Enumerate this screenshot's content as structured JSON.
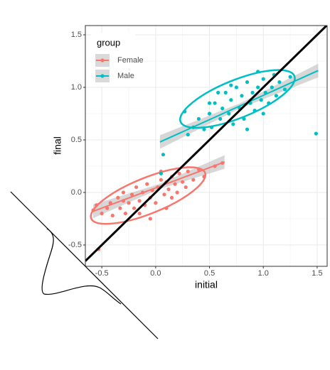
{
  "chart_data": {
    "type": "scatter",
    "xlabel": "initial",
    "ylabel": "final",
    "xlim": [
      -0.653,
      1.593
    ],
    "ylim": [
      -0.703,
      1.588
    ],
    "xticks": [
      -0.5,
      {
        "value": 0,
        "label": "0.0"
      },
      0.5,
      {
        "value": 1,
        "label": "1.0"
      },
      1.5
    ],
    "yticks": [
      -0.5,
      {
        "value": 0,
        "label": "0.0"
      },
      0.5,
      {
        "value": 1,
        "label": "1.0"
      },
      1.5
    ],
    "grid": true,
    "identity_line": true,
    "legend": {
      "title": "group",
      "position": "top-left"
    },
    "series": [
      {
        "name": "Female",
        "color": "#F8766D",
        "x": [
          -0.58,
          -0.55,
          -0.5,
          -0.45,
          -0.42,
          -0.4,
          -0.35,
          -0.33,
          -0.3,
          -0.28,
          -0.25,
          -0.22,
          -0.2,
          -0.18,
          -0.15,
          -0.12,
          -0.1,
          -0.08,
          -0.05,
          -0.03,
          0.0,
          0.02,
          0.05,
          0.08,
          0.1,
          0.12,
          0.15,
          0.18,
          0.2,
          0.22,
          0.25,
          0.28,
          0.3,
          0.35,
          0.4,
          0.45,
          0.55,
          0.62,
          -0.53,
          -0.05,
          0.1,
          -0.3,
          0.05,
          -0.15,
          0.15
        ],
        "values": [
          -0.17,
          -0.12,
          -0.2,
          -0.15,
          -0.1,
          -0.22,
          -0.05,
          -0.15,
          -0.08,
          -0.2,
          -0.1,
          -0.02,
          -0.15,
          0.05,
          -0.08,
          0.0,
          -0.12,
          0.08,
          -0.05,
          0.02,
          -0.1,
          0.05,
          0.12,
          -0.02,
          0.1,
          0.03,
          0.15,
          0.08,
          0.0,
          0.18,
          0.1,
          0.05,
          0.2,
          0.12,
          0.22,
          0.15,
          0.25,
          0.28,
          -0.54,
          -0.25,
          -0.15,
          0.0,
          0.2,
          -0.2,
          -0.05
        ],
        "trend": {
          "x": [
            -0.58,
            0.64
          ],
          "values": [
            -0.18,
            0.29
          ]
        },
        "ellipse": {
          "center": [
            -0.07,
            -0.03
          ],
          "radii": [
            0.57,
            0.17
          ],
          "angle": 22
        }
      },
      {
        "name": "Male",
        "color": "#00BFC4",
        "x": [
          0.07,
          0.05,
          0.27,
          0.3,
          0.35,
          0.4,
          0.45,
          0.5,
          0.52,
          0.55,
          0.6,
          0.62,
          0.65,
          0.68,
          0.7,
          0.72,
          0.75,
          0.78,
          0.8,
          0.82,
          0.85,
          0.88,
          0.9,
          0.92,
          0.95,
          0.98,
          1.0,
          1.02,
          1.05,
          1.08,
          1.1,
          1.12,
          1.15,
          1.2,
          1.25,
          1.49,
          0.58,
          0.85,
          0.95,
          0.7,
          0.5,
          1.0
        ],
        "values": [
          0.36,
          0.18,
          0.77,
          0.55,
          0.62,
          0.7,
          0.6,
          0.75,
          0.62,
          0.85,
          0.7,
          0.8,
          0.95,
          0.75,
          0.88,
          0.65,
          1.0,
          0.8,
          0.92,
          0.7,
          1.05,
          0.85,
          0.95,
          0.78,
          1.0,
          0.88,
          1.08,
          0.95,
          0.85,
          1.0,
          1.12,
          0.92,
          1.05,
          0.98,
          1.1,
          0.56,
          0.95,
          0.6,
          1.15,
          1.02,
          0.85,
          0.75
        ],
        "trend": {
          "x": [
            0.04,
            1.51
          ],
          "values": [
            0.48,
            1.16
          ]
        },
        "ellipse": {
          "center": [
            0.76,
            0.89
          ],
          "radii": [
            0.57,
            0.18
          ],
          "angle": 22
        }
      }
    ]
  }
}
